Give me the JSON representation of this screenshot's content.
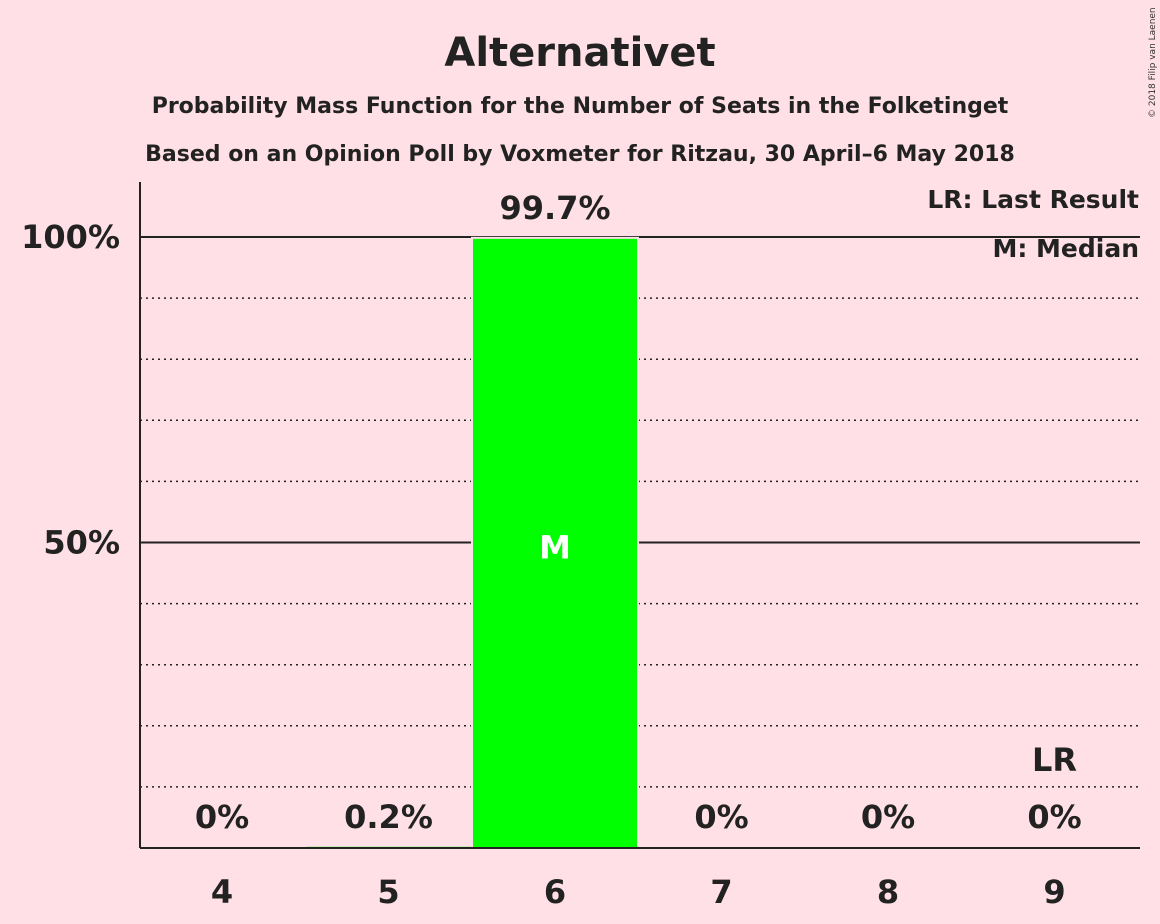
{
  "chart_data": {
    "type": "bar",
    "title": "Alternativet",
    "subtitle": "Probability Mass Function for the Number of Seats in the Folketinget",
    "subtitle2": "Based on an Opinion Poll by Voxmeter for Ritzau, 30 April–6 May 2018",
    "copyright": "© 2018 Filip van Laenen",
    "categories": [
      "4",
      "5",
      "6",
      "7",
      "8",
      "9"
    ],
    "values": [
      0,
      0.2,
      99.7,
      0,
      0,
      0
    ],
    "value_labels": [
      "0%",
      "0.2%",
      "99.7%",
      "0%",
      "0%",
      "0%"
    ],
    "ylim": [
      0,
      110
    ],
    "yticks": [
      {
        "value": 50,
        "label": "50%"
      },
      {
        "value": 100,
        "label": "100%"
      }
    ],
    "minor_gridlines": [
      10,
      20,
      30,
      40,
      60,
      70,
      80,
      90
    ],
    "median_category": "6",
    "median_marker": "M",
    "last_result_category": "9",
    "last_result_marker": "LR",
    "legend": [
      "LR: Last Result",
      "M: Median"
    ],
    "legend_position": "top-right",
    "bar_color": "#00ff00",
    "background_color": "#ffe0e6"
  }
}
